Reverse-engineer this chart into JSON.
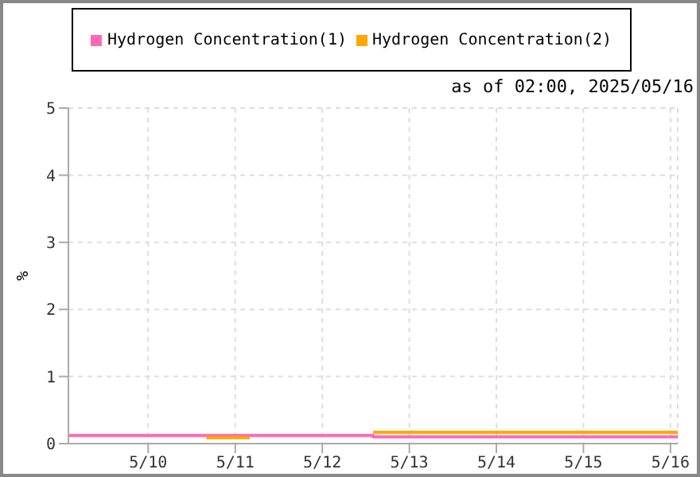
{
  "chart_data": {
    "type": "step",
    "ylabel": "%",
    "annotations": [
      "as of 02:00, 2025/05/16"
    ],
    "xlim": [
      "2025-05-09T02:00",
      "2025-05-16T02:00"
    ],
    "xticks": [
      {
        "value": "2025-05-10",
        "label": "5/10"
      },
      {
        "value": "2025-05-11",
        "label": "5/11"
      },
      {
        "value": "2025-05-12",
        "label": "5/12"
      },
      {
        "value": "2025-05-13",
        "label": "5/13"
      },
      {
        "value": "2025-05-14",
        "label": "5/14"
      },
      {
        "value": "2025-05-15",
        "label": "5/15"
      },
      {
        "value": "2025-05-16",
        "label": "5/16"
      }
    ],
    "ylim": [
      0,
      5
    ],
    "yticks": [
      0,
      1,
      2,
      3,
      4,
      5
    ],
    "grid": true,
    "legend": "top",
    "marker": "none",
    "line_style": "solid",
    "series": [
      {
        "name": "Hydrogen Concentration(1)",
        "color": "#ff69b4",
        "x": [
          "2025-05-09T02:00",
          "2025-05-12T14:00",
          "2025-05-16T02:00"
        ],
        "values": [
          0.12,
          0.1,
          0.1
        ]
      },
      {
        "name": "Hydrogen Concentration(2)",
        "color": "#ffa500",
        "x": [
          "2025-05-10T16:00",
          "2025-05-11T04:00",
          "2025-05-11T05:00",
          "2025-05-12T14:00",
          "2025-05-16T02:00"
        ],
        "values": [
          0.09,
          0.09,
          null,
          0.17,
          0.17
        ]
      }
    ]
  }
}
